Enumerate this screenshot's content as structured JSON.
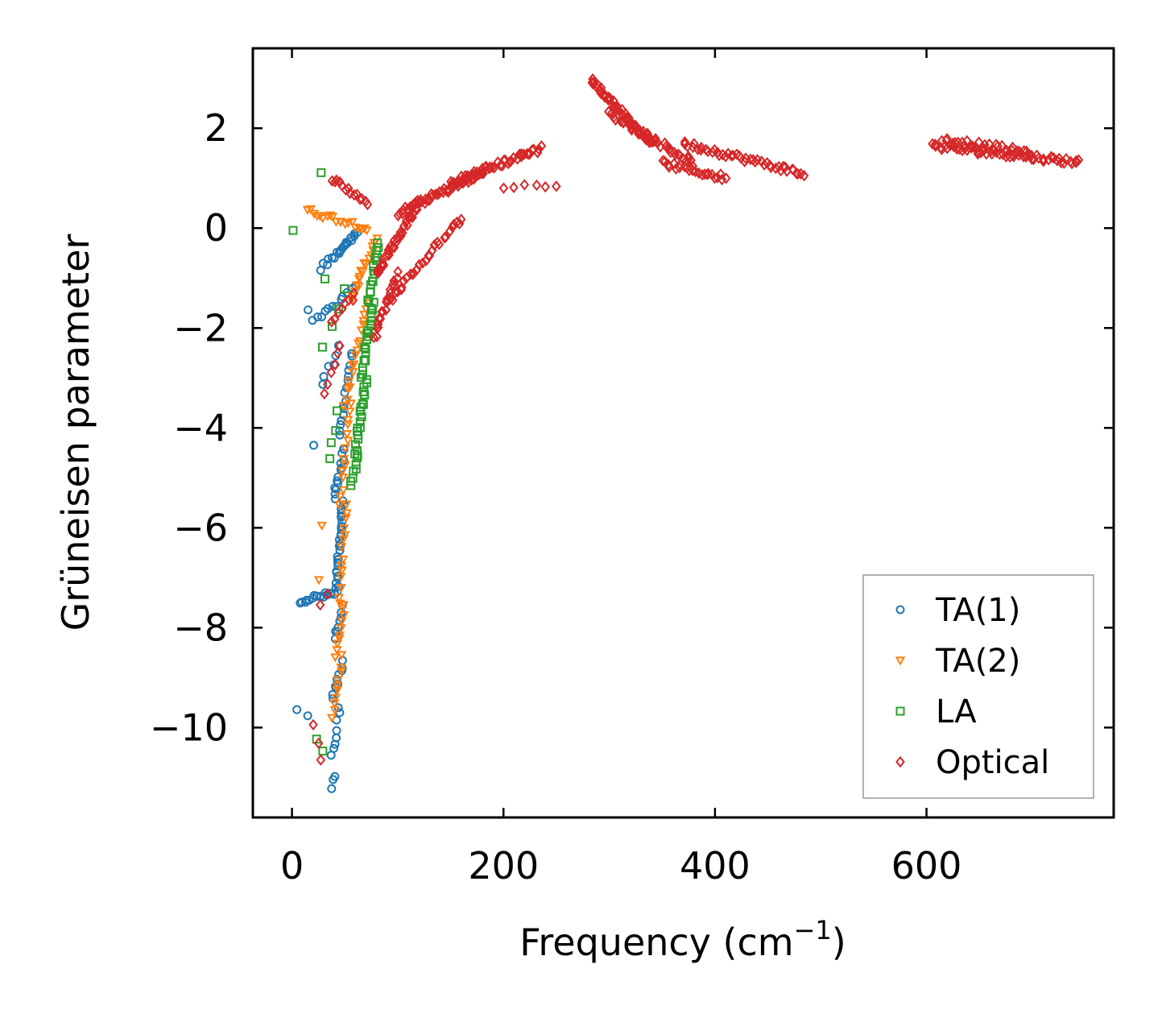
{
  "chart_data": {
    "type": "scatter",
    "title": "",
    "xlabel": "Frequency (cm",
    "xlabel_sup": "−1",
    "xlabel_close": ")",
    "ylabel": "Grüneisen parameter",
    "xlim": [
      -37,
      777
    ],
    "ylim": [
      -11.8,
      3.6
    ],
    "xticks": [
      0,
      200,
      400,
      600
    ],
    "xtick_labels": [
      "0",
      "200",
      "400",
      "600"
    ],
    "yticks": [
      2,
      0,
      -2,
      -4,
      -6,
      -8,
      -10
    ],
    "ytick_labels": [
      "2",
      "0",
      "−2",
      "−4",
      "−6",
      "−8",
      "−10"
    ],
    "legend_position": "lower-right",
    "series": [
      {
        "name": "TA(1)",
        "marker": "circle",
        "color": "#1f77b4",
        "segments": [
          {
            "x": [
              37,
              40
            ],
            "y": [
              -11.2,
              -11.0
            ],
            "n": 3
          },
          {
            "x": [
              38,
              45
            ],
            "y": [
              -10.6,
              -9.6
            ],
            "n": 8
          },
          {
            "x": [
              38,
              48
            ],
            "y": [
              -9.4,
              -8.7
            ],
            "n": 10
          },
          {
            "x": [
              40,
              48
            ],
            "y": [
              -8.2,
              -7.6
            ],
            "n": 8
          },
          {
            "x": [
              8,
              40
            ],
            "y": [
              -7.45,
              -7.32
            ],
            "n": 16
          },
          {
            "x": [
              42,
              48
            ],
            "y": [
              -7.3,
              -5.5
            ],
            "n": 30
          },
          {
            "x": [
              40,
              50
            ],
            "y": [
              -5.4,
              -4.4
            ],
            "n": 14
          },
          {
            "x": [
              45,
              56
            ],
            "y": [
              -4.2,
              -2.5
            ],
            "n": 16
          },
          {
            "x": [
              28,
              45
            ],
            "y": [
              -3.1,
              -2.4
            ],
            "n": 6
          },
          {
            "x": [
              20,
              60
            ],
            "y": [
              -1.9,
              -1.2
            ],
            "n": 12
          },
          {
            "x": [
              28,
              62
            ],
            "y": [
              -0.8,
              -0.1
            ],
            "n": 16
          },
          {
            "x": [
              46,
              58
            ],
            "y": [
              -0.4,
              -0.15
            ],
            "n": 6
          },
          {
            "x": [
              6,
              14
            ],
            "y": [
              -9.7,
              -9.8
            ],
            "n": 2
          },
          {
            "x": [
              16,
              20
            ],
            "y": [
              -1.6,
              -4.4
            ],
            "n": 2
          }
        ]
      },
      {
        "name": "TA(2)",
        "marker": "triangle-down",
        "color": "#ff7f0e",
        "segments": [
          {
            "x": [
              38,
              48
            ],
            "y": [
              -9.8,
              -8.6
            ],
            "n": 10
          },
          {
            "x": [
              40,
              50
            ],
            "y": [
              -8.6,
              -7.5
            ],
            "n": 10
          },
          {
            "x": [
              44,
              52
            ],
            "y": [
              -7.5,
              -5.5
            ],
            "n": 14
          },
          {
            "x": [
              46,
              56
            ],
            "y": [
              -5.5,
              -3.5
            ],
            "n": 14
          },
          {
            "x": [
              50,
              72
            ],
            "y": [
              -3.5,
              -1.5
            ],
            "n": 18
          },
          {
            "x": [
              54,
              80
            ],
            "y": [
              -1.5,
              -0.2
            ],
            "n": 18
          },
          {
            "x": [
              14,
              72
            ],
            "y": [
              0.35,
              0.0
            ],
            "n": 20
          },
          {
            "x": [
              26,
              28
            ],
            "y": [
              -7.1,
              -6.0
            ],
            "n": 2
          }
        ]
      },
      {
        "name": "LA",
        "marker": "square",
        "color": "#2ca02c",
        "segments": [
          {
            "x": [
              56,
              62
            ],
            "y": [
              -5.2,
              -4.5
            ],
            "n": 8
          },
          {
            "x": [
              60,
              70
            ],
            "y": [
              -4.5,
              -3.0
            ],
            "n": 20
          },
          {
            "x": [
              66,
              76
            ],
            "y": [
              -3.0,
              -1.5
            ],
            "n": 20
          },
          {
            "x": [
              72,
              82
            ],
            "y": [
              -1.5,
              -0.3
            ],
            "n": 16
          },
          {
            "x": [
              36,
              42
            ],
            "y": [
              -4.6,
              -3.7
            ],
            "n": 4
          },
          {
            "x": [
              30,
              50
            ],
            "y": [
              -2.4,
              -1.2
            ],
            "n": 4
          },
          {
            "x": [
              28,
              30
            ],
            "y": [
              1.12,
              1.12
            ],
            "n": 1
          },
          {
            "x": [
              0,
              1
            ],
            "y": [
              0.0,
              0.0
            ],
            "n": 1
          },
          {
            "x": [
              22,
              28
            ],
            "y": [
              -10.2,
              -10.5
            ],
            "n": 2
          },
          {
            "x": [
              31,
              33
            ],
            "y": [
              -1.05,
              -1.05
            ],
            "n": 1
          }
        ]
      },
      {
        "name": "Optical",
        "marker": "diamond",
        "color": "#d62728",
        "segments": [
          {
            "x": [
              20,
              28
            ],
            "y": [
              -10.0,
              -10.6
            ],
            "n": 3
          },
          {
            "x": [
              28,
              33
            ],
            "y": [
              -7.5,
              -7.3
            ],
            "n": 2
          },
          {
            "x": [
              30,
              46
            ],
            "y": [
              -3.3,
              -2.3
            ],
            "n": 6
          },
          {
            "x": [
              36,
              60
            ],
            "y": [
              -1.9,
              -1.3
            ],
            "n": 8
          },
          {
            "x": [
              38,
              72
            ],
            "y": [
              1.0,
              0.5
            ],
            "n": 14
          },
          {
            "x": [
              78,
              100
            ],
            "y": [
              -2.2,
              -0.9
            ],
            "n": 20
          },
          {
            "x": [
              80,
              120
            ],
            "y": [
              -0.9,
              0.5
            ],
            "n": 40
          },
          {
            "x": [
              90,
              160
            ],
            "y": [
              -1.5,
              0.2
            ],
            "n": 30
          },
          {
            "x": [
              100,
              180
            ],
            "y": [
              0.3,
              1.1
            ],
            "n": 50
          },
          {
            "x": [
              150,
              235
            ],
            "y": [
              0.9,
              1.6
            ],
            "n": 45
          },
          {
            "x": [
              200,
              250
            ],
            "y": [
              0.85,
              0.85
            ],
            "n": 6
          },
          {
            "x": [
              283,
              340
            ],
            "y": [
              2.95,
              1.7
            ],
            "n": 50
          },
          {
            "x": [
              300,
              380
            ],
            "y": [
              2.3,
              1.3
            ],
            "n": 40
          },
          {
            "x": [
              350,
              410
            ],
            "y": [
              1.3,
              1.0
            ],
            "n": 25
          },
          {
            "x": [
              370,
              485
            ],
            "y": [
              1.7,
              1.08
            ],
            "n": 45
          },
          {
            "x": [
              605,
              745
            ],
            "y": [
              1.65,
              1.32
            ],
            "n": 60
          },
          {
            "x": [
              615,
              700
            ],
            "y": [
              1.78,
              1.5
            ],
            "n": 30
          }
        ]
      }
    ]
  }
}
